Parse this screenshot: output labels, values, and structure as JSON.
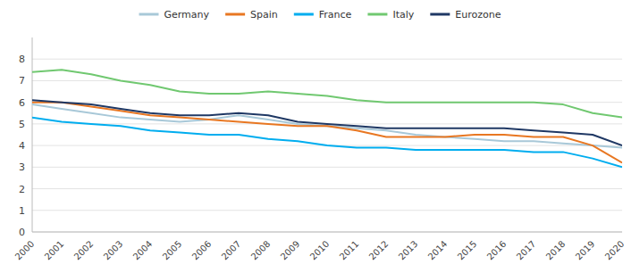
{
  "chart_data": {
    "type": "line",
    "x": [
      2000,
      2001,
      2002,
      2003,
      2004,
      2005,
      2006,
      2007,
      2008,
      2009,
      2010,
      2011,
      2012,
      2013,
      2014,
      2015,
      2016,
      2017,
      2018,
      2019,
      2020
    ],
    "series": [
      {
        "name": "Germany",
        "color": "#a8c8d8",
        "values": [
          5.9,
          5.7,
          5.5,
          5.3,
          5.2,
          5.1,
          5.2,
          5.4,
          5.2,
          5.0,
          4.9,
          4.8,
          4.7,
          4.5,
          4.4,
          4.3,
          4.2,
          4.2,
          4.1,
          4.0,
          3.9
        ]
      },
      {
        "name": "Spain",
        "color": "#e87722",
        "values": [
          6.0,
          6.0,
          5.8,
          5.6,
          5.4,
          5.3,
          5.2,
          5.1,
          5.0,
          4.9,
          4.9,
          4.7,
          4.4,
          4.4,
          4.4,
          4.5,
          4.5,
          4.4,
          4.4,
          4.0,
          3.2
        ]
      },
      {
        "name": "France",
        "color": "#00adef",
        "values": [
          5.3,
          5.1,
          5.0,
          4.9,
          4.7,
          4.6,
          4.5,
          4.5,
          4.3,
          4.2,
          4.0,
          3.9,
          3.9,
          3.8,
          3.8,
          3.8,
          3.8,
          3.7,
          3.7,
          3.4,
          3.0
        ]
      },
      {
        "name": "Italy",
        "color": "#70c870",
        "values": [
          7.4,
          7.5,
          7.3,
          7.0,
          6.8,
          6.5,
          6.4,
          6.4,
          6.5,
          6.4,
          6.3,
          6.1,
          6.0,
          6.0,
          6.0,
          6.0,
          6.0,
          6.0,
          5.9,
          5.5,
          5.3
        ]
      },
      {
        "name": "Eurozone",
        "color": "#1f3864",
        "values": [
          6.1,
          6.0,
          5.9,
          5.7,
          5.5,
          5.4,
          5.4,
          5.5,
          5.4,
          5.1,
          5.0,
          4.9,
          4.8,
          4.8,
          4.8,
          4.8,
          4.8,
          4.7,
          4.6,
          4.5,
          4.0
        ]
      }
    ],
    "xlim": [
      2000,
      2020
    ],
    "xticks": [
      2000,
      2001,
      2002,
      2003,
      2004,
      2005,
      2006,
      2007,
      2008,
      2009,
      2010,
      2011,
      2012,
      2013,
      2014,
      2015,
      2016,
      2017,
      2018,
      2019,
      2020
    ],
    "ylim": [
      0,
      9
    ],
    "yticks": [
      0,
      1,
      2,
      3,
      4,
      5,
      6,
      7,
      8
    ],
    "grid": true,
    "legend": "top"
  }
}
